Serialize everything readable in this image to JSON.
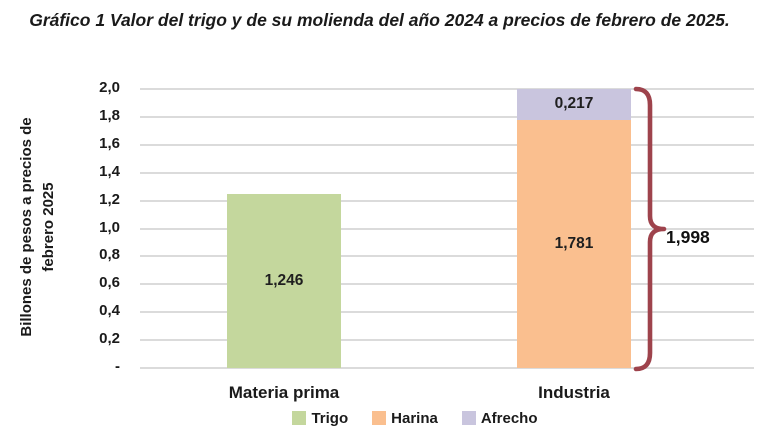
{
  "title": {
    "text": "Gráfico 1 Valor del trigo y de su molienda del año 2024 a precios de febrero de 2025."
  },
  "y_axis": {
    "title_line1": "Billones de pesos a precios de",
    "title_line2": "febrero 2025",
    "ticks": [
      "2,0",
      "1,8",
      "1,6",
      "1,4",
      "1,2",
      "1,0",
      "0,8",
      "0,6",
      "0,4",
      "0,2",
      "-"
    ]
  },
  "x_axis": {
    "categories": [
      "Materia prima",
      "Industria"
    ]
  },
  "legend": {
    "items": [
      {
        "label": "Trigo",
        "color": "#c4d79d"
      },
      {
        "label": "Harina",
        "color": "#fabf8f"
      },
      {
        "label": "Afrecho",
        "color": "#c9c5de"
      }
    ]
  },
  "total_annotation": {
    "label": "1,998",
    "total": 1.998,
    "brace_color": "#9e434c"
  },
  "colors": {
    "gridline": "#dbdbdb",
    "text": "#1a1a1a"
  },
  "chart_data": {
    "type": "bar",
    "stacked": true,
    "title": "Gráfico 1 Valor del trigo y de su molienda del año 2024 a precios de febrero de 2025.",
    "categories": [
      "Materia prima",
      "Industria"
    ],
    "series": [
      {
        "name": "Trigo",
        "color": "#c4d79d",
        "values": [
          1.246,
          0
        ],
        "labels": [
          "1,246",
          ""
        ]
      },
      {
        "name": "Harina",
        "color": "#fabf8f",
        "values": [
          0,
          1.781
        ],
        "labels": [
          "",
          "1,781"
        ]
      },
      {
        "name": "Afrecho",
        "color": "#c9c5de",
        "values": [
          0,
          0.217
        ],
        "labels": [
          "",
          "0,217"
        ]
      }
    ],
    "xlabel": "",
    "ylabel": "Billones de pesos a precios de febrero 2025",
    "ylim": [
      0,
      2.0
    ],
    "ytick_step": 0.2,
    "grid": true,
    "legend_position": "bottom",
    "annotations": [
      {
        "type": "brace",
        "category": "Industria",
        "label": "1,998",
        "value": 1.998
      }
    ]
  }
}
